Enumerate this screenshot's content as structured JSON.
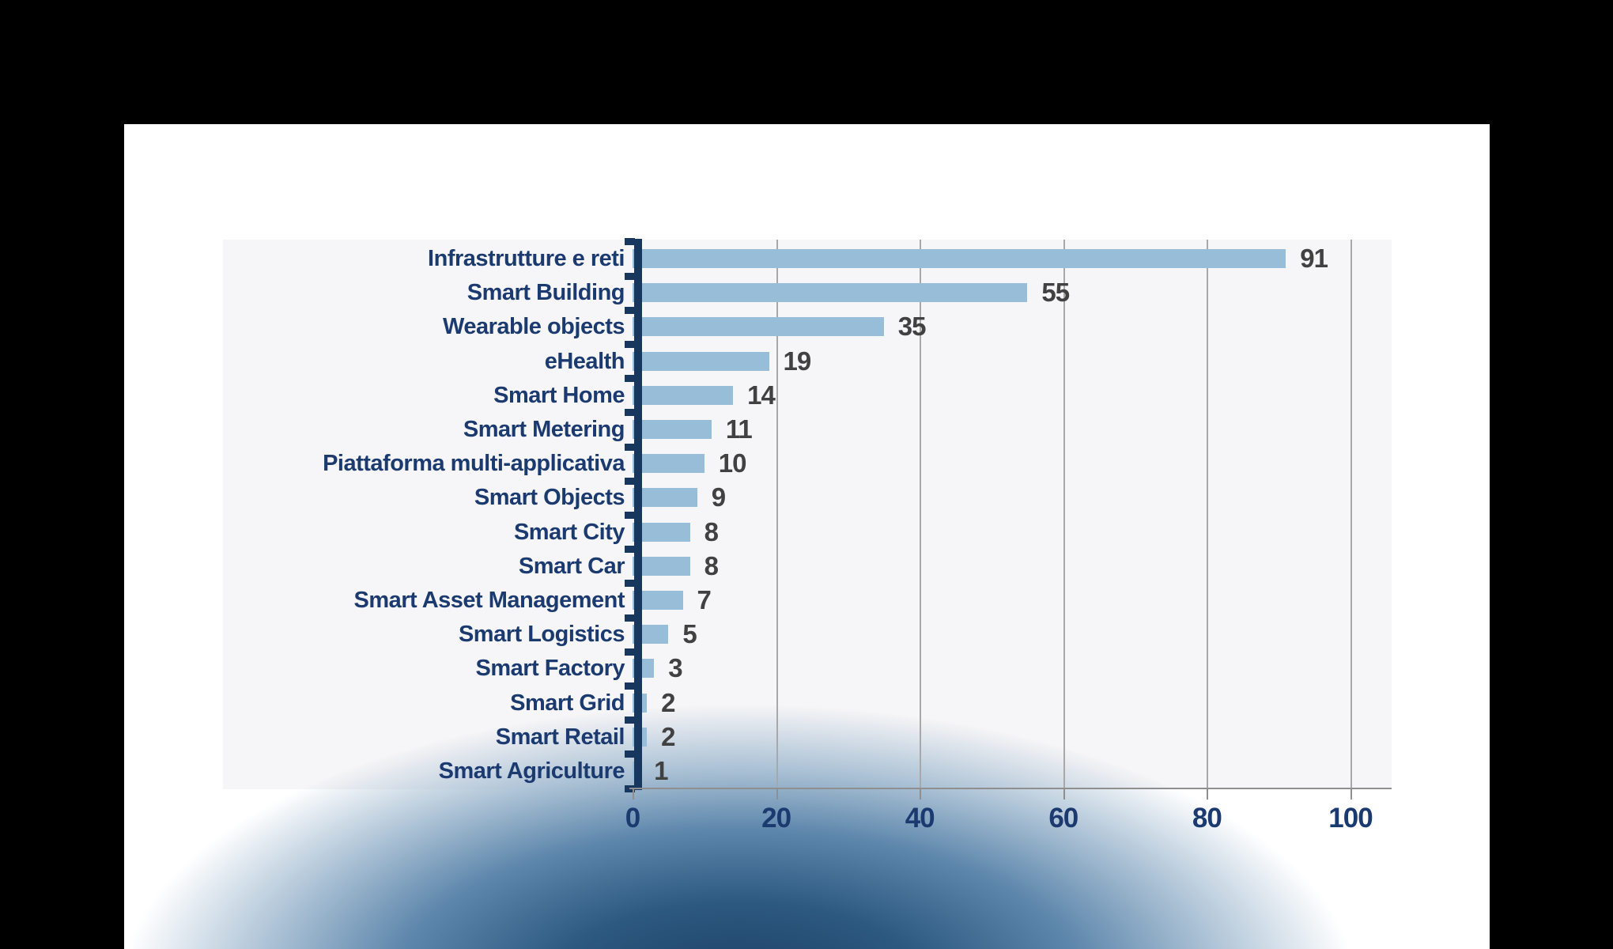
{
  "frame": {
    "background": "#000000",
    "panel_background": "#ffffff"
  },
  "colors": {
    "bar": "#97bdd9",
    "category_label": "#1b3a70",
    "value_label": "#414141",
    "axis_bracket": "#17375e",
    "gridline": "#a8a8a8",
    "x_axis_line": "#8f8f8f",
    "plot_background": "#f6f5f7",
    "bottom_glow": "#1c4164"
  },
  "chart_data": {
    "type": "bar",
    "orientation": "horizontal",
    "title": "",
    "xlabel": "",
    "ylabel": "",
    "xlim": [
      0,
      100
    ],
    "x_ticks": [
      0,
      20,
      40,
      60,
      80,
      100
    ],
    "grid": "vertical gridlines at x ticks, light gray",
    "legend": "none",
    "value_labels_position": "right of bar end",
    "categories": [
      "Infrastrutture e reti",
      "Smart Building",
      "Wearable objects",
      "eHealth",
      "Smart Home",
      "Smart Metering",
      "Piattaforma multi-applicativa",
      "Smart Objects",
      "Smart City",
      "Smart Car",
      "Smart Asset Management",
      "Smart Logistics",
      "Smart Factory",
      "Smart Grid",
      "Smart Retail",
      "Smart Agriculture"
    ],
    "values": [
      91,
      55,
      35,
      19,
      14,
      11,
      10,
      9,
      8,
      8,
      7,
      5,
      3,
      2,
      2,
      1
    ]
  }
}
